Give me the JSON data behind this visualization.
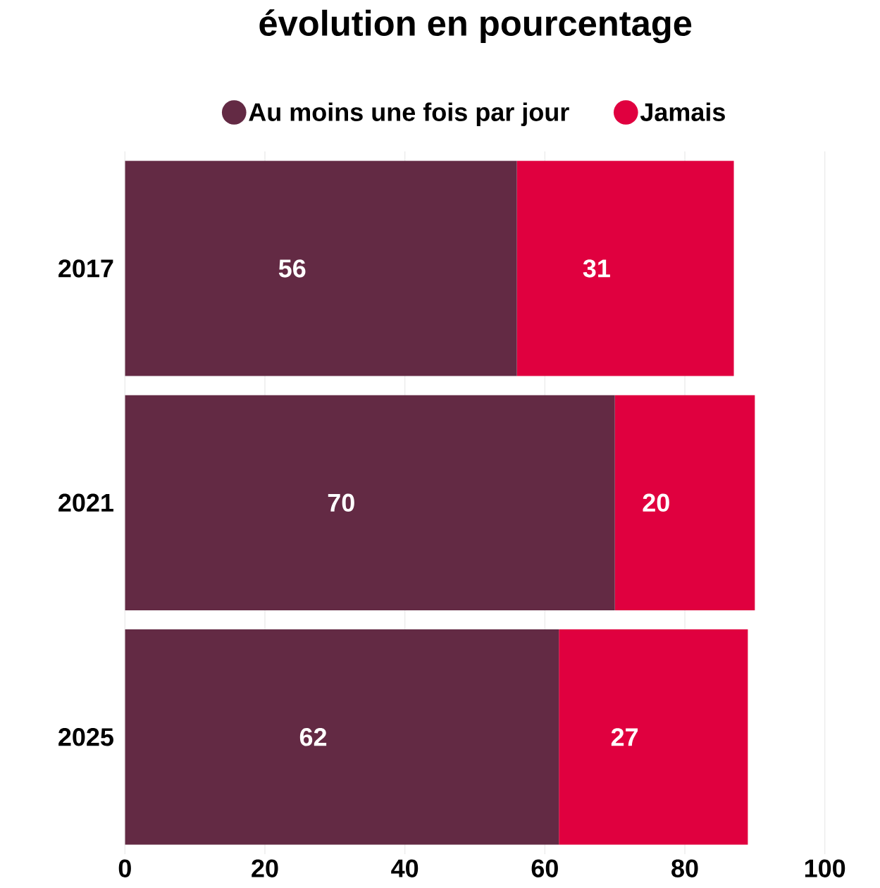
{
  "chart_data": {
    "type": "bar",
    "orientation": "horizontal",
    "stacked": true,
    "title": "évolution en pourcentage",
    "categories": [
      "2017",
      "2021",
      "2025"
    ],
    "series": [
      {
        "name": "Au moins une fois par jour",
        "color": "#632a44",
        "values": [
          56,
          70,
          62
        ]
      },
      {
        "name": "Jamais",
        "color": "#e0003f",
        "values": [
          31,
          20,
          27
        ]
      }
    ],
    "xlim": [
      0,
      100
    ],
    "xticks": [
      0,
      20,
      40,
      60,
      80,
      100
    ],
    "grid": "x",
    "legend": "top",
    "data_labels": true
  }
}
